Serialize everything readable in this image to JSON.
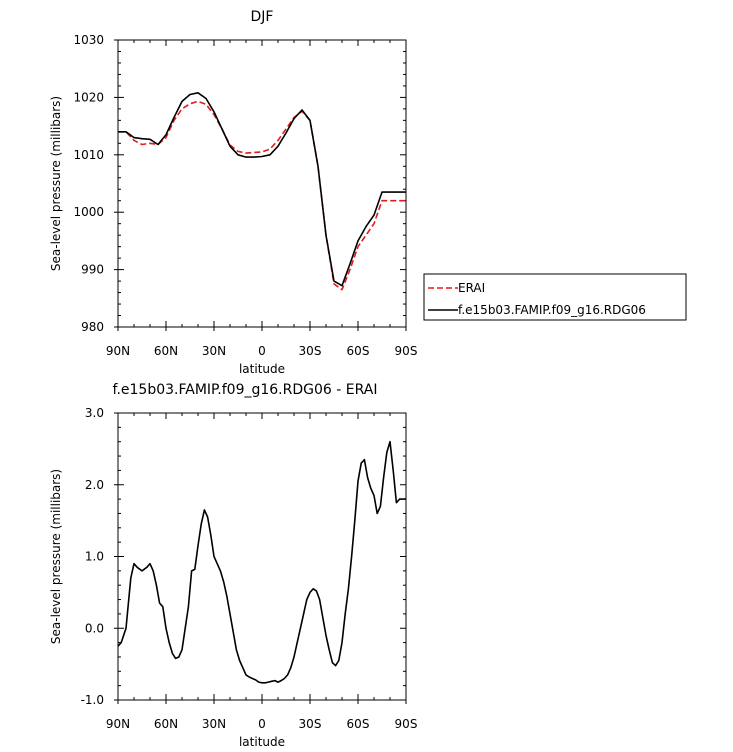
{
  "chart_data": [
    {
      "type": "line",
      "title": "DJF",
      "xlabel": "latitude",
      "ylabel": "Sea-level pressure (millibars)",
      "xlim": [
        90,
        -90
      ],
      "ylim": [
        980,
        1030
      ],
      "x_tick_values": [
        90,
        60,
        30,
        0,
        -30,
        -60,
        -90
      ],
      "x_tick_labels": [
        "90N",
        "60N",
        "30N",
        "0",
        "30S",
        "60S",
        "90S"
      ],
      "y_tick_values": [
        980,
        990,
        1000,
        1010,
        1020,
        1030
      ],
      "y_tick_labels": [
        "980",
        "990",
        "1000",
        "1010",
        "1020",
        "1030"
      ],
      "legend_position": "right",
      "series": [
        {
          "name": "ERAI",
          "color": "#e41a1c",
          "dash": "dashed",
          "x": [
            90,
            85,
            80,
            75,
            70,
            65,
            60,
            55,
            50,
            45,
            40,
            35,
            30,
            25,
            20,
            15,
            10,
            5,
            0,
            -5,
            -10,
            -15,
            -20,
            -25,
            -30,
            -35,
            -40,
            -45,
            -50,
            -55,
            -60,
            -65,
            -70,
            -75,
            -80,
            -85,
            -90
          ],
          "y": [
            1014,
            1014,
            1012.5,
            1011.8,
            1012,
            1011.8,
            1013,
            1016,
            1018,
            1018.9,
            1019.3,
            1018.8,
            1017,
            1014.5,
            1011.7,
            1010.6,
            1010.3,
            1010.4,
            1010.5,
            1011,
            1012.5,
            1014.5,
            1016.5,
            1017.6,
            1016,
            1008,
            996,
            987.5,
            986.5,
            990,
            994,
            996,
            998,
            1002,
            1002,
            1002,
            1002
          ]
        },
        {
          "name": "f.e15b03.FAMIP.f09_g16.RDG06",
          "color": "#000000",
          "dash": "solid",
          "x": [
            90,
            85,
            80,
            75,
            70,
            65,
            60,
            55,
            50,
            45,
            40,
            35,
            30,
            25,
            20,
            15,
            10,
            5,
            0,
            -5,
            -10,
            -15,
            -20,
            -25,
            -30,
            -35,
            -40,
            -45,
            -50,
            -55,
            -60,
            -65,
            -70,
            -75,
            -80,
            -85,
            -90
          ],
          "y": [
            1014,
            1014,
            1013,
            1012.8,
            1012.7,
            1011.8,
            1013.5,
            1016.5,
            1019.3,
            1020.5,
            1020.8,
            1019.8,
            1017.5,
            1014.5,
            1011.5,
            1010,
            1009.6,
            1009.6,
            1009.7,
            1010,
            1011.5,
            1013.8,
            1016.3,
            1017.8,
            1016,
            1008,
            996,
            988,
            987.2,
            991,
            995,
            997.5,
            999.5,
            1003.5,
            1003.5,
            1003.5,
            1003.5
          ]
        }
      ]
    },
    {
      "type": "line",
      "title": "f.e15b03.FAMIP.f09_g16.RDG06 - ERAI",
      "xlabel": "latitude",
      "ylabel": "Sea-level pressure (millibars)",
      "xlim": [
        90,
        -90
      ],
      "ylim": [
        -1.0,
        3.0
      ],
      "x_tick_values": [
        90,
        60,
        30,
        0,
        -30,
        -60,
        -90
      ],
      "x_tick_labels": [
        "90N",
        "60N",
        "30N",
        "0",
        "30S",
        "60S",
        "90S"
      ],
      "y_tick_values": [
        -1.0,
        0.0,
        1.0,
        2.0,
        3.0
      ],
      "y_tick_labels": [
        "-1.0",
        "0.0",
        "1.0",
        "2.0",
        "3.0"
      ],
      "series": [
        {
          "color": "#000000",
          "dash": "solid",
          "x": [
            90,
            88,
            85,
            82,
            80,
            78,
            75,
            72,
            70,
            68,
            66,
            64,
            62,
            60,
            58,
            56,
            54,
            52,
            50,
            48,
            46,
            44,
            42,
            40,
            38,
            36,
            34,
            32,
            30,
            28,
            26,
            24,
            22,
            20,
            18,
            16,
            14,
            12,
            10,
            8,
            6,
            4,
            2,
            0,
            -2,
            -4,
            -6,
            -8,
            -10,
            -12,
            -14,
            -16,
            -18,
            -20,
            -22,
            -24,
            -26,
            -28,
            -30,
            -32,
            -34,
            -36,
            -38,
            -40,
            -42,
            -44,
            -46,
            -48,
            -50,
            -52,
            -54,
            -56,
            -58,
            -60,
            -62,
            -64,
            -66,
            -68,
            -70,
            -72,
            -74,
            -76,
            -78,
            -80,
            -82,
            -84,
            -86,
            -88,
            -90
          ],
          "y": [
            -0.25,
            -0.2,
            0,
            0.7,
            0.9,
            0.85,
            0.8,
            0.85,
            0.9,
            0.8,
            0.6,
            0.35,
            0.3,
            0,
            -0.2,
            -0.35,
            -0.42,
            -0.4,
            -0.3,
            0,
            0.3,
            0.8,
            0.82,
            1.15,
            1.45,
            1.65,
            1.55,
            1.3,
            1.0,
            0.9,
            0.8,
            0.65,
            0.45,
            0.2,
            -0.05,
            -0.3,
            -0.45,
            -0.55,
            -0.65,
            -0.68,
            -0.7,
            -0.72,
            -0.75,
            -0.76,
            -0.76,
            -0.75,
            -0.74,
            -0.73,
            -0.75,
            -0.73,
            -0.7,
            -0.65,
            -0.55,
            -0.4,
            -0.2,
            0,
            0.2,
            0.4,
            0.5,
            0.55,
            0.52,
            0.4,
            0.15,
            -0.1,
            -0.3,
            -0.48,
            -0.52,
            -0.45,
            -0.2,
            0.2,
            0.55,
            1.0,
            1.5,
            2.05,
            2.3,
            2.35,
            2.1,
            1.95,
            1.85,
            1.6,
            1.7,
            2.1,
            2.45,
            2.6,
            2.2,
            1.75,
            1.8,
            1.8,
            1.8
          ]
        }
      ]
    }
  ]
}
